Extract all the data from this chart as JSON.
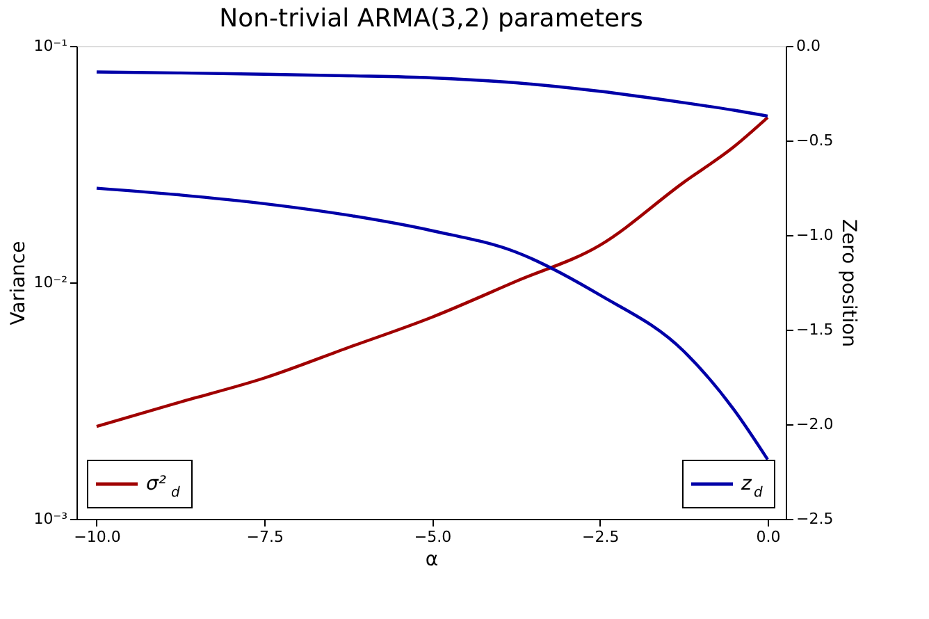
{
  "chart_data": {
    "type": "line",
    "title": "Non-trivial ARMA(3,2) parameters",
    "xlabel": "α",
    "ylabel": "Variance",
    "y2label": "Zero position",
    "x": [
      -10,
      -8.75,
      -7.5,
      -6.25,
      -5,
      -3.75,
      -2.5,
      -1.25,
      -0.5,
      0
    ],
    "series": [
      {
        "name": "σ²$_{d}$",
        "color": "#a00000",
        "values": [
          0.00246,
          0.00312,
          0.00394,
          0.0053,
          0.00713,
          0.0101,
          0.01436,
          0.0265,
          0.0375,
          0.0498
        ]
      },
      {
        "name": "z$_{d}$",
        "color": "#0000a8",
        "axis": "y2",
        "values": [
          -0.138,
          -0.143,
          -0.15,
          -0.158,
          -0.169,
          -0.195,
          -0.24,
          -0.3,
          -0.34,
          -0.371
        ]
      },
      {
        "color": "#0000a8",
        "axis": "y2",
        "values": [
          -0.752,
          -0.788,
          -0.834,
          -0.895,
          -0.977,
          -1.09,
          -1.317,
          -1.614,
          -1.924,
          -2.186
        ]
      }
    ],
    "xlim": [
      -10.3,
      0.27
    ],
    "ylim": [
      0.001,
      0.1
    ],
    "y2lim": [
      -2.5,
      0
    ],
    "xticks": [
      {
        "value": -10,
        "label": "−10.0"
      },
      {
        "value": -7.5,
        "label": "−7.5"
      },
      {
        "value": -5,
        "label": "−5.0"
      },
      {
        "value": -2.5,
        "label": "−2.5"
      },
      {
        "value": 0,
        "label": "0.0"
      }
    ],
    "yticks": [
      {
        "value": 0.001,
        "label": "10⁻³"
      },
      {
        "value": 0.01,
        "label": "10⁻²"
      },
      {
        "value": 0.1,
        "label": "10⁻¹"
      }
    ],
    "y2ticks": [
      {
        "value": 0,
        "label": "0.0"
      },
      {
        "value": -0.5,
        "label": "−0.5"
      },
      {
        "value": -1,
        "label": "−1.0"
      },
      {
        "value": -1.5,
        "label": "−1.5"
      },
      {
        "value": -2,
        "label": "−2.0"
      },
      {
        "value": -2.5,
        "label": "−2.5"
      }
    ],
    "log": "y",
    "grid": false,
    "legend": "bottom",
    "line_style": "solid",
    "marker": "none"
  }
}
